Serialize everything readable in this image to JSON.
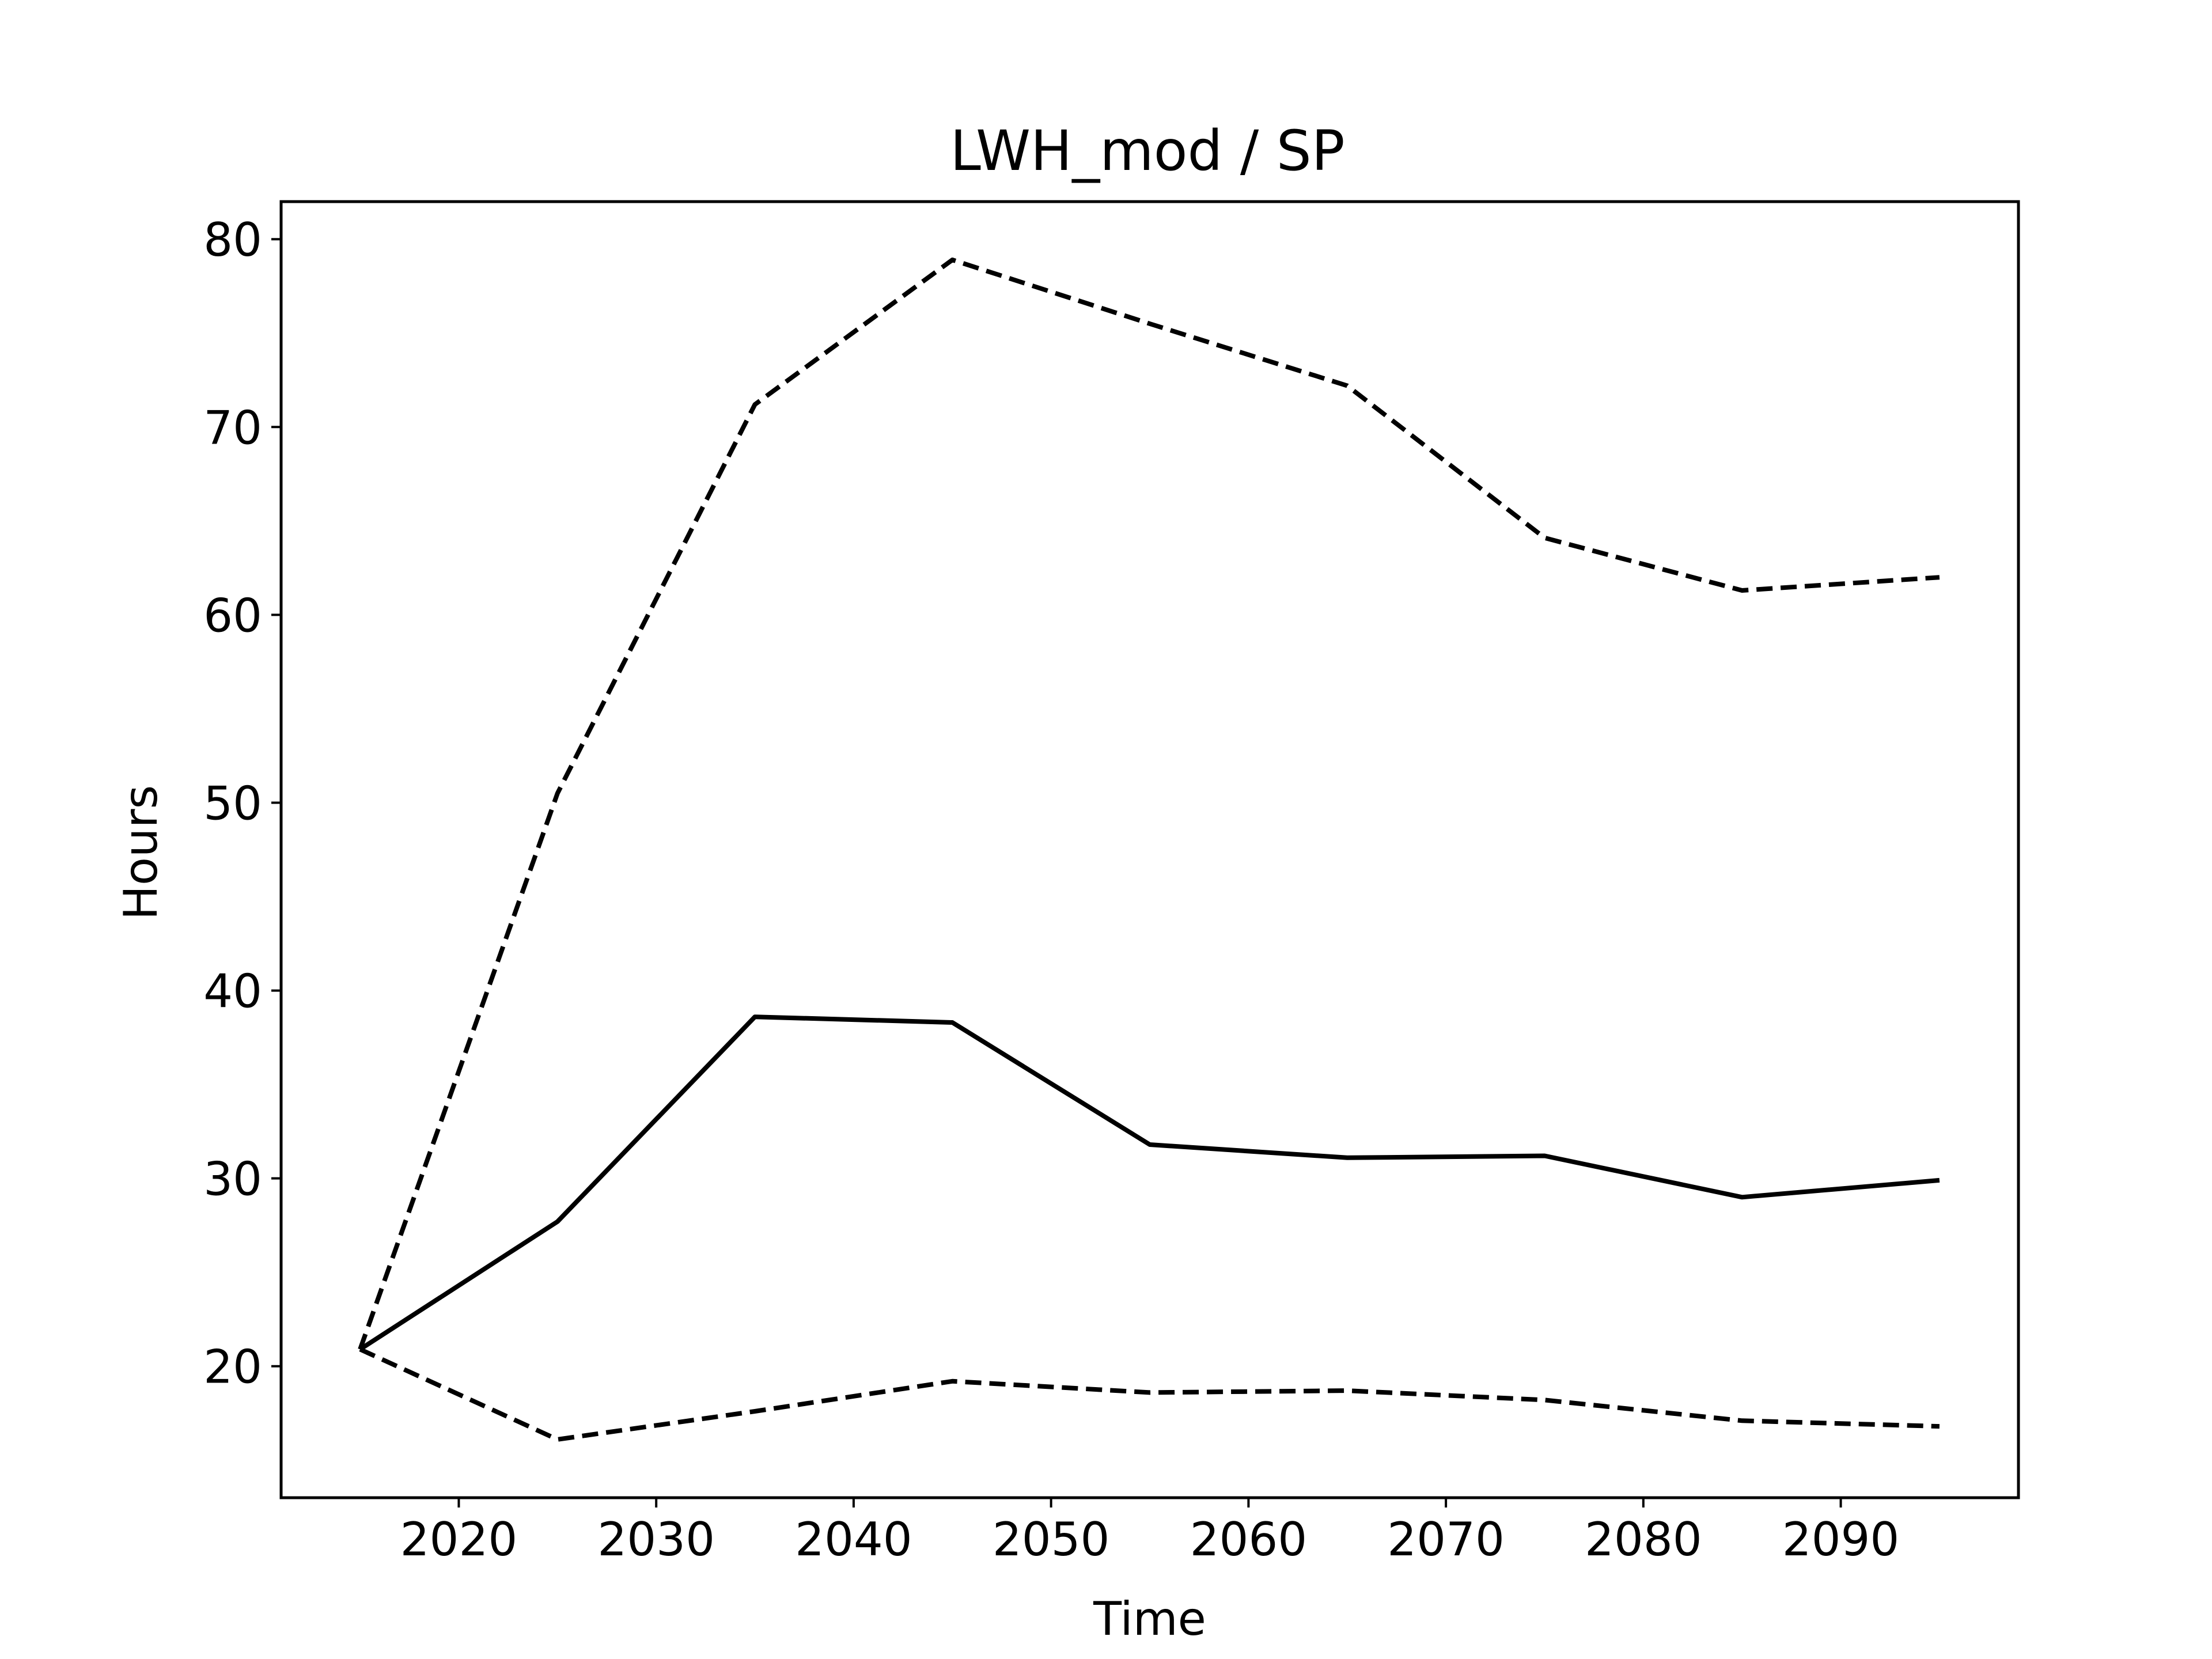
{
  "chart_data": {
    "type": "line",
    "title": "LWH_mod / SP",
    "xlabel": "Time",
    "ylabel": "Hours",
    "xlim": [
      2011,
      2099
    ],
    "ylim": [
      13,
      82
    ],
    "xticks": [
      2020,
      2030,
      2040,
      2050,
      2060,
      2070,
      2080,
      2090
    ],
    "yticks": [
      20,
      30,
      40,
      50,
      60,
      70,
      80
    ],
    "grid": false,
    "legend": "none",
    "x": [
      2015,
      2025,
      2035,
      2045,
      2055,
      2065,
      2075,
      2085,
      2095
    ],
    "series": [
      {
        "values": [
          20.9,
          27.7,
          38.6,
          38.3,
          31.8,
          31.1,
          31.2,
          29.0,
          29.9
        ],
        "style": "solid",
        "color": "#000000"
      },
      {
        "values": [
          20.9,
          50.5,
          71.2,
          78.9,
          75.5,
          72.2,
          64.1,
          61.3,
          62.0
        ],
        "style": "dashed",
        "color": "#000000"
      },
      {
        "values": [
          20.9,
          16.1,
          17.6,
          19.2,
          18.6,
          18.7,
          18.2,
          17.1,
          16.8
        ],
        "style": "dashed",
        "color": "#000000"
      }
    ]
  }
}
